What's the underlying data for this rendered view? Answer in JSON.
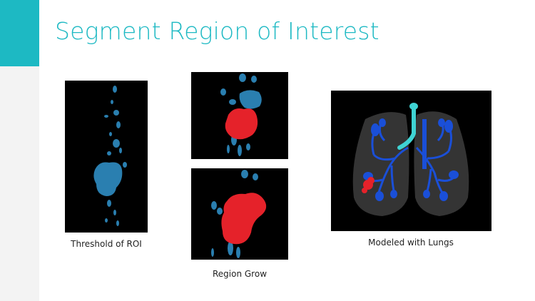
{
  "slide": {
    "title": "Segment Region of Interest",
    "accent_color": "#1db9c3"
  },
  "figures": [
    {
      "id": "threshold",
      "caption": "Threshold of ROI"
    },
    {
      "id": "region-grow",
      "caption": "Region Grow"
    },
    {
      "id": "lungs",
      "caption": "Modeled with Lungs"
    }
  ],
  "colors": {
    "segmented_blue": "#2a7fb0",
    "region_red": "#e5222a",
    "airway_cyan": "#3fd3d3",
    "vessel_blue": "#1a4fd8"
  }
}
